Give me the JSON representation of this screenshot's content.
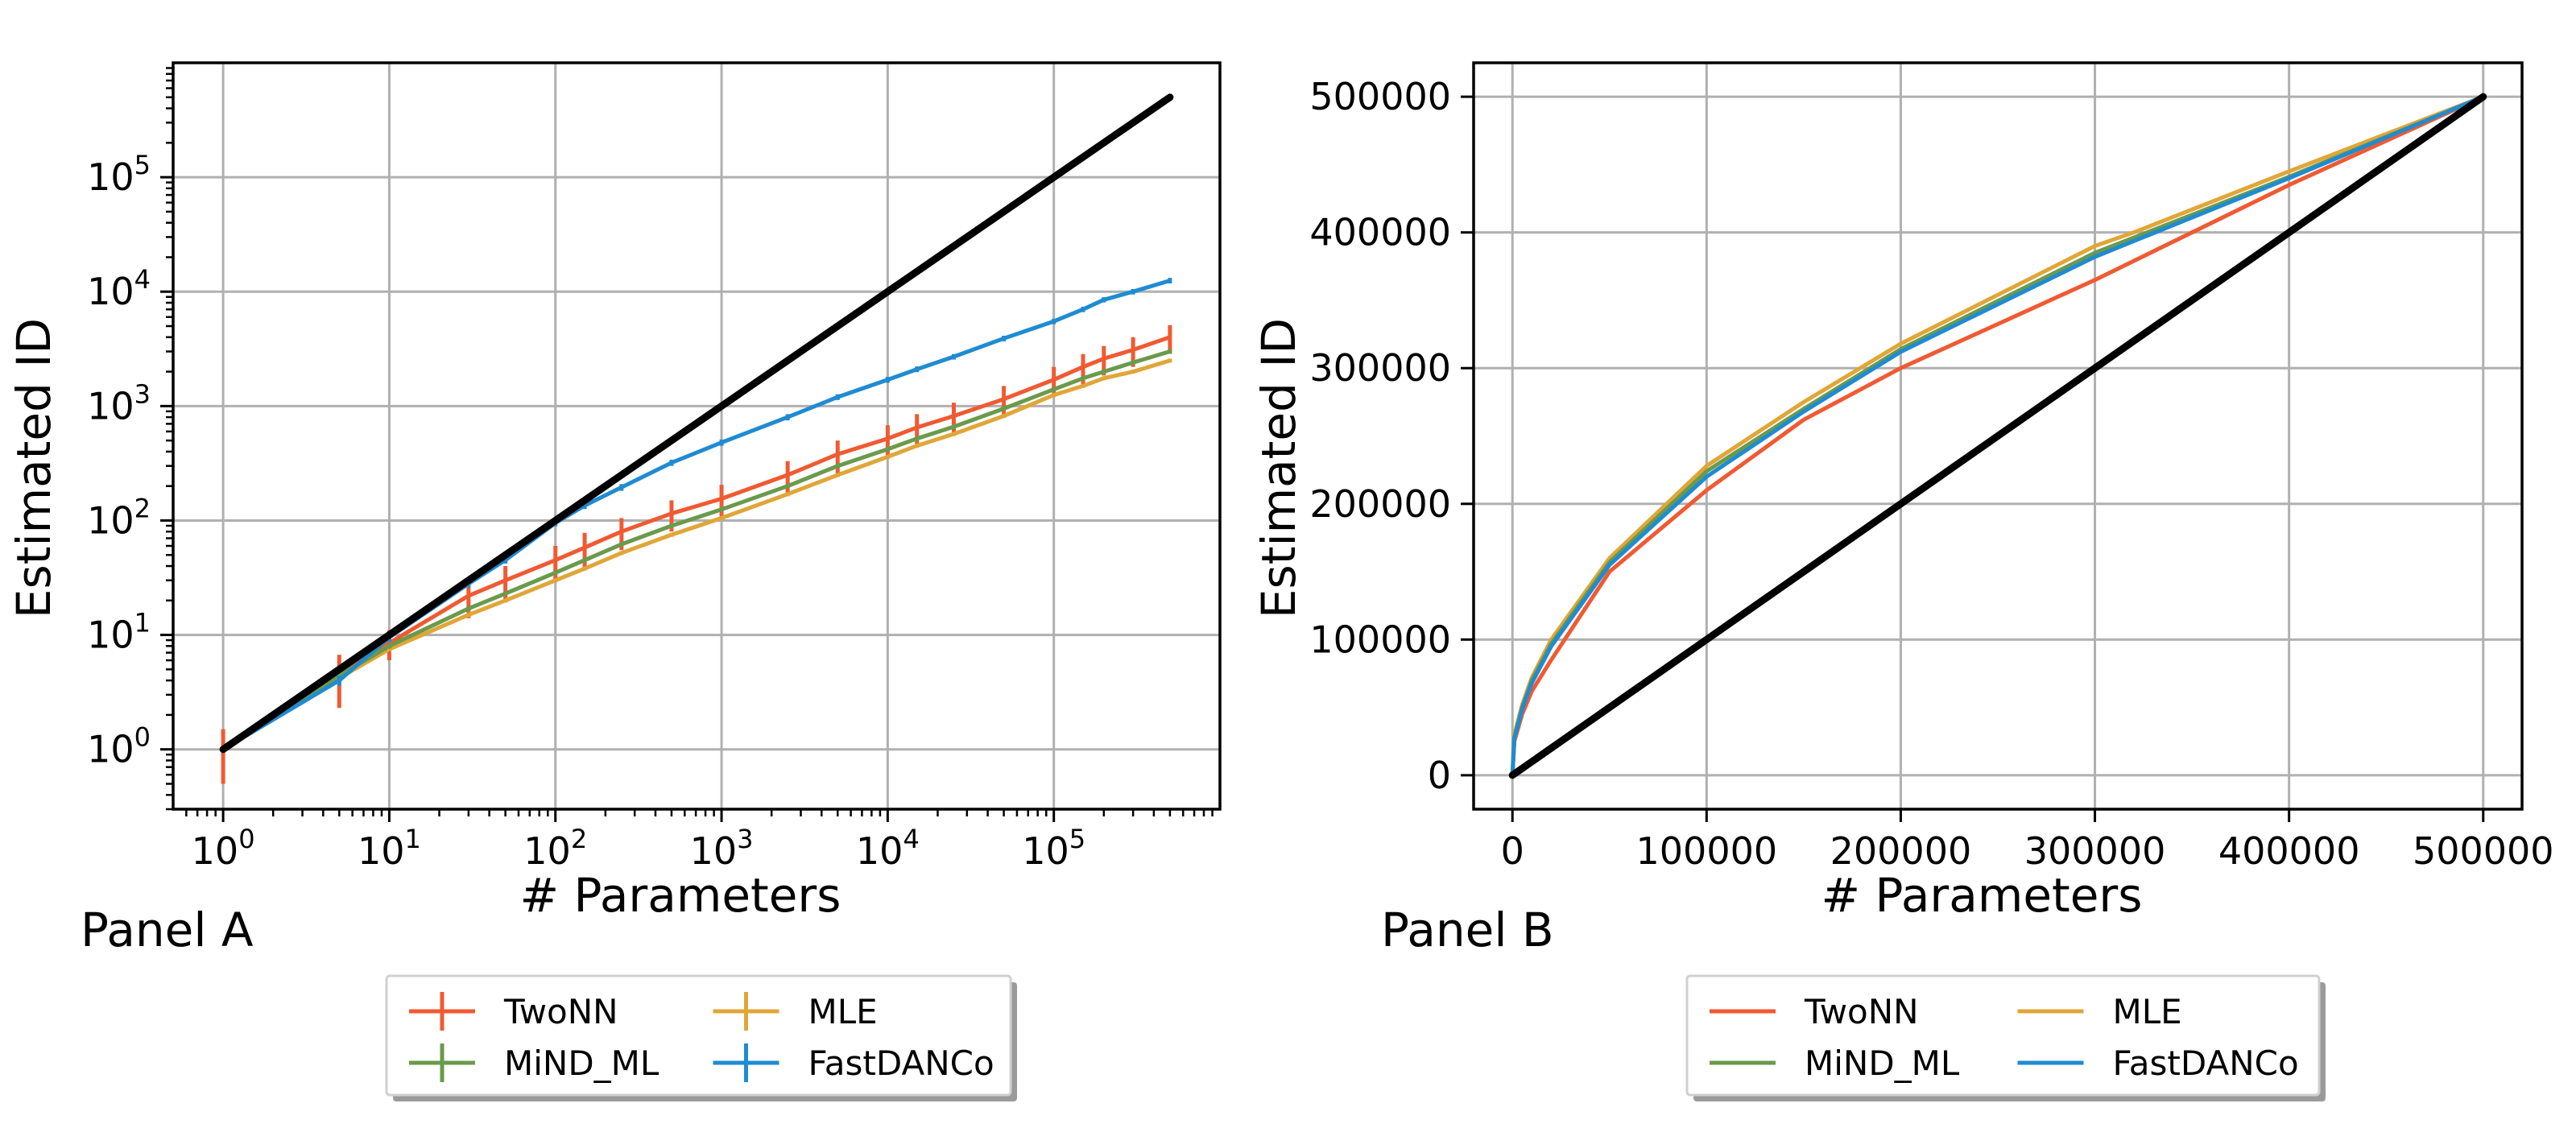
{
  "chart_data": [
    {
      "panel": "Panel A",
      "type": "line",
      "scale": "log-log",
      "xlabel": "# Parameters",
      "ylabel": "Estimated ID",
      "xlim": [
        0.5,
        1000000
      ],
      "ylim": [
        0.3,
        1000000
      ],
      "x_tick_labels": [
        "10^0",
        "10^1",
        "10^2",
        "10^3",
        "10^4",
        "10^5"
      ],
      "y_tick_labels": [
        "10^0",
        "10^1",
        "10^2",
        "10^3",
        "10^4",
        "10^5"
      ],
      "grid": true,
      "legend_position": "bottom",
      "reference_line": {
        "name": "identity",
        "color": "#000000",
        "x": [
          1,
          500000
        ],
        "y": [
          1,
          500000
        ]
      },
      "series": [
        {
          "name": "TwoNN",
          "color": "#f05a32",
          "x": [
            1,
            5,
            10,
            30,
            50,
            100,
            150,
            250,
            500,
            1000,
            2500,
            5000,
            10000,
            15000,
            25000,
            50000,
            100000,
            150000,
            200000,
            300000,
            500000
          ],
          "y": [
            1,
            4.5,
            8.5,
            22,
            30,
            45,
            58,
            80,
            115,
            155,
            250,
            380,
            520,
            650,
            820,
            1150,
            1700,
            2200,
            2600,
            3100,
            4000
          ],
          "err": [
            0.5,
            2.2,
            2.5,
            8,
            10,
            15,
            20,
            25,
            35,
            50,
            80,
            120,
            160,
            200,
            250,
            350,
            500,
            650,
            750,
            900,
            1100
          ]
        },
        {
          "name": "MLE",
          "color": "#e0a638",
          "x": [
            1,
            5,
            10,
            30,
            50,
            100,
            150,
            250,
            500,
            1000,
            2500,
            5000,
            10000,
            15000,
            25000,
            50000,
            100000,
            150000,
            200000,
            300000,
            500000
          ],
          "y": [
            1,
            4.2,
            7.5,
            15,
            20,
            30,
            38,
            52,
            75,
            105,
            170,
            250,
            360,
            450,
            570,
            820,
            1250,
            1500,
            1750,
            2000,
            2500
          ],
          "err": [
            0.05,
            0.2,
            0.3,
            0.6,
            0.8,
            1.2,
            1.5,
            2,
            3,
            4,
            7,
            10,
            14,
            18,
            23,
            33,
            50,
            60,
            70,
            80,
            100
          ]
        },
        {
          "name": "MiND_ML",
          "color": "#6a9a4c",
          "x": [
            1,
            5,
            10,
            30,
            50,
            100,
            150,
            250,
            500,
            1000,
            2500,
            5000,
            10000,
            15000,
            25000,
            50000,
            100000,
            150000,
            200000,
            300000,
            500000
          ],
          "y": [
            1,
            4.4,
            8,
            17,
            23,
            35,
            45,
            62,
            90,
            125,
            200,
            300,
            420,
            520,
            660,
            950,
            1400,
            1750,
            2000,
            2400,
            3000
          ],
          "err": [
            0.05,
            0.2,
            0.4,
            0.8,
            1,
            1.5,
            2,
            3,
            4,
            6,
            9,
            14,
            20,
            25,
            32,
            45,
            65,
            80,
            95,
            110,
            140
          ]
        },
        {
          "name": "FastDANCo",
          "color": "#1f8bd2",
          "x": [
            1,
            5,
            10,
            30,
            50,
            100,
            150,
            250,
            500,
            1000,
            2500,
            5000,
            10000,
            15000,
            25000,
            50000,
            100000,
            150000,
            200000,
            300000,
            500000
          ],
          "y": [
            1,
            4,
            9.5,
            28,
            45,
            95,
            135,
            195,
            320,
            480,
            800,
            1200,
            1700,
            2100,
            2700,
            3900,
            5500,
            7000,
            8500,
            10000,
            12500
          ],
          "err": [
            0.05,
            0.4,
            0.8,
            2,
            3,
            6,
            9,
            13,
            20,
            30,
            50,
            70,
            100,
            120,
            150,
            220,
            300,
            380,
            450,
            550,
            700
          ]
        }
      ]
    },
    {
      "panel": "Panel B",
      "type": "line",
      "scale": "linear",
      "xlabel": "# Parameters",
      "ylabel": "Estimated ID",
      "xlim": [
        -20000,
        520000
      ],
      "ylim": [
        -25000,
        525000
      ],
      "x_tick_labels": [
        "0",
        "100000",
        "200000",
        "300000",
        "400000",
        "500000"
      ],
      "y_tick_labels": [
        "0",
        "100000",
        "200000",
        "300000",
        "400000",
        "500000"
      ],
      "grid": true,
      "legend_position": "bottom",
      "reference_line": {
        "name": "identity",
        "color": "#000000",
        "x": [
          0,
          500000
        ],
        "y": [
          0,
          500000
        ]
      },
      "series": [
        {
          "name": "TwoNN",
          "color": "#f05a32",
          "x": [
            0,
            1000,
            5000,
            10000,
            20000,
            50000,
            100000,
            150000,
            200000,
            300000,
            400000,
            500000
          ],
          "y": [
            0,
            25000,
            45000,
            62000,
            85000,
            150000,
            210000,
            262000,
            300000,
            365000,
            435000,
            500000
          ]
        },
        {
          "name": "MLE",
          "color": "#e0a638",
          "x": [
            0,
            1000,
            5000,
            10000,
            20000,
            50000,
            100000,
            150000,
            200000,
            300000,
            320000,
            400000,
            500000
          ],
          "y": [
            0,
            30000,
            52000,
            72000,
            100000,
            160000,
            228000,
            275000,
            318000,
            390000,
            400000,
            445000,
            500000
          ]
        },
        {
          "name": "MiND_ML",
          "color": "#6a9a4c",
          "x": [
            0,
            1000,
            5000,
            10000,
            20000,
            50000,
            100000,
            150000,
            200000,
            300000,
            400000,
            500000
          ],
          "y": [
            0,
            28000,
            50000,
            70000,
            97000,
            157000,
            224000,
            270000,
            314000,
            385000,
            441000,
            500000
          ]
        },
        {
          "name": "FastDANCo",
          "color": "#1f8bd2",
          "x": [
            0,
            1000,
            5000,
            10000,
            20000,
            50000,
            100000,
            150000,
            200000,
            300000,
            400000,
            500000
          ],
          "y": [
            0,
            27000,
            49000,
            68000,
            95000,
            155000,
            220000,
            268000,
            312000,
            382000,
            440000,
            500000
          ]
        }
      ]
    }
  ]
}
